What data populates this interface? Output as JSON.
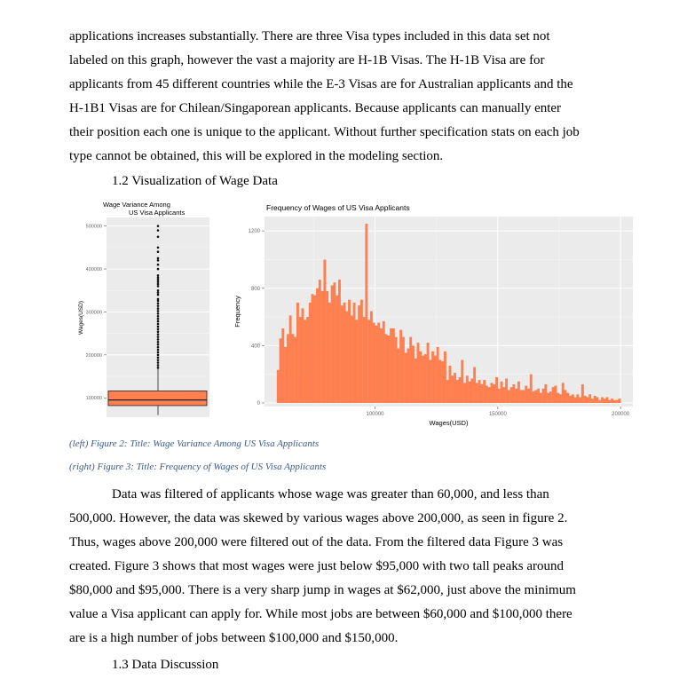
{
  "paragraph1": [
    "applications increases substantially. There are three Visa types included in this data set not",
    "labeled on this graph, however the vast a majority are H-1B Visas. The H-1B Visa are for",
    "applicants from 45 different countries while the E-3 Visas are for Australian applicants and the",
    "H-1B1 Visas are for Chilean/Singaporean applicants. Because applicants can manually enter",
    "their position each one is unique to the applicant. Without further specification stats on each job",
    "type cannot be obtained, this will be explored in the modeling section."
  ],
  "heading_1_2": "1.2 Visualization of Wage Data",
  "chart_data": [
    {
      "type": "box",
      "title": "Wage Variance Among",
      "subtitle": "US Visa Applicants",
      "xlabel": "",
      "ylabel": "Wages(USD)",
      "ylim": [
        55000,
        520000
      ],
      "yticks": [
        100000,
        200000,
        300000,
        400000,
        500000
      ],
      "ytick_labels": [
        "100000",
        "200000",
        "300000",
        "400000",
        "500000"
      ],
      "box": {
        "min": 60000,
        "q1": 82000,
        "median": 95000,
        "q3": 116000,
        "whisker_high": 167000
      },
      "outliers": [
        170000,
        176000,
        182000,
        188000,
        194000,
        200000,
        206000,
        212000,
        218000,
        224000,
        230000,
        236000,
        242000,
        248000,
        254000,
        260000,
        266000,
        272000,
        278000,
        284000,
        290000,
        296000,
        302000,
        308000,
        314000,
        320000,
        326000,
        330000,
        340000,
        345000,
        350000,
        360000,
        365000,
        370000,
        375000,
        380000,
        385000,
        400000,
        410000,
        420000,
        425000,
        440000,
        450000,
        475000,
        490000,
        500000
      ],
      "fill": "#fe7f50",
      "grid": true
    },
    {
      "type": "bar",
      "title": "Frequency of Wages of US Visa Applicants",
      "xlabel": "Wages(USD)",
      "ylabel": "Frequency",
      "xlim": [
        55000,
        205000
      ],
      "ylim": [
        -25,
        1300
      ],
      "xticks": [
        100000,
        150000,
        200000
      ],
      "xtick_labels": [
        "100000",
        "150000",
        "200000"
      ],
      "yticks": [
        0,
        400,
        800,
        1200
      ],
      "ytick_labels": [
        "0",
        "400",
        "800",
        "1200"
      ],
      "bin_start": 60000,
      "bin_width": 1000,
      "values": [
        230,
        450,
        520,
        390,
        480,
        610,
        480,
        460,
        700,
        600,
        660,
        580,
        600,
        700,
        760,
        750,
        800,
        860,
        780,
        1000,
        780,
        700,
        820,
        840,
        750,
        860,
        680,
        700,
        640,
        720,
        610,
        700,
        580,
        680,
        720,
        600,
        1250,
        580,
        640,
        560,
        540,
        560,
        520,
        570,
        480,
        470,
        520,
        520,
        460,
        380,
        510,
        460,
        350,
        380,
        460,
        400,
        310,
        420,
        360,
        330,
        340,
        420,
        300,
        360,
        330,
        390,
        300,
        290,
        360,
        160,
        260,
        190,
        210,
        160,
        180,
        300,
        140,
        190,
        150,
        170,
        250,
        140,
        160,
        130,
        160,
        120,
        110,
        140,
        130,
        180,
        100,
        150,
        110,
        170,
        90,
        110,
        130,
        100,
        150,
        90,
        90,
        120,
        100,
        200,
        80,
        90,
        100,
        70,
        100,
        130,
        70,
        80,
        110,
        120,
        70,
        60,
        140,
        90,
        70,
        50,
        60,
        40,
        60,
        40,
        130,
        50,
        40,
        60,
        30,
        50,
        40,
        20,
        40,
        30,
        40,
        20,
        30,
        20,
        20,
        30
      ],
      "fill": "#fe7f50",
      "grid": true
    }
  ],
  "caption_left": "(left) Figure 2: Title: Wage Variance Among US Visa Applicants",
  "caption_right": "(right) Figure 3: Title: Frequency of Wages of US Visa Applicants",
  "paragraph2": [
    "Data was filtered of applicants whose wage was greater than 60,000, and less than",
    "500,000. However, the data was skewed by various wages above 200,000, as seen in figure 2.",
    "Thus, wages above 200,000 were filtered out of the data. From the filtered data Figure 3 was",
    "created. Figure 3 shows that most wages were just below $95,000 with two tall peaks around",
    "$80,000 and $95,000. There is a very sharp jump in wages at $62,000, just above the minimum",
    "value a Visa applicant can apply for. While most jobs are between $60,000 and $100,000 there",
    "are is a high number of jobs between $100,000 and $150,000."
  ],
  "heading_1_3": "1.3 Data Discussion"
}
